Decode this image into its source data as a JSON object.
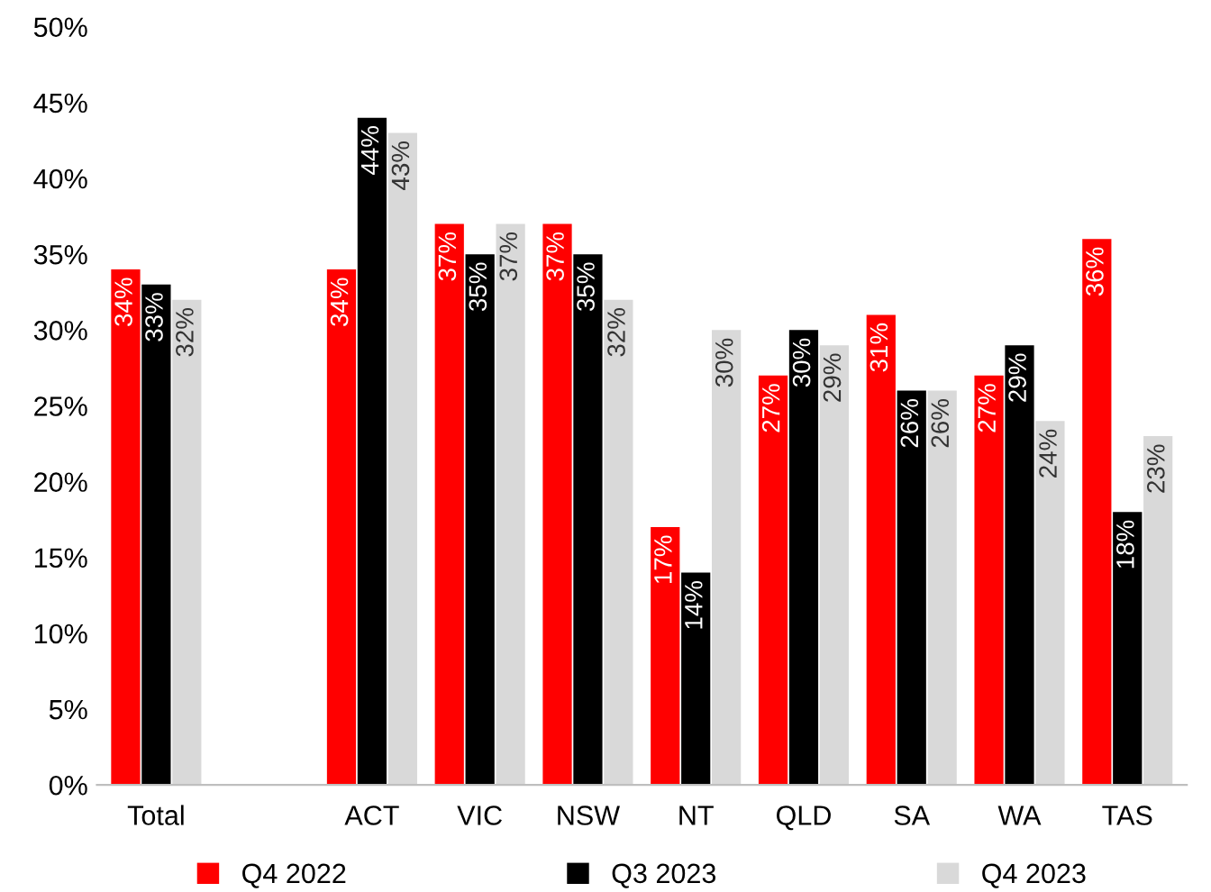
{
  "chart_data": {
    "type": "bar",
    "categories": [
      "Total",
      null,
      "ACT",
      "VIC",
      "NSW",
      "NT",
      "QLD",
      "SA",
      "WA",
      "TAS"
    ],
    "series": [
      {
        "name": "Q4 2022",
        "color": "#ff0000",
        "values": [
          34,
          null,
          34,
          37,
          37,
          17,
          27,
          31,
          27,
          36
        ],
        "value_labels": [
          "34%",
          null,
          "34%",
          "37%",
          "37%",
          "17%",
          "27%",
          "31%",
          "27%",
          "36%"
        ]
      },
      {
        "name": "Q3 2023",
        "color": "#000000",
        "values": [
          33,
          null,
          44,
          35,
          35,
          14,
          30,
          26,
          29,
          18
        ],
        "value_labels": [
          "33%",
          null,
          "44%",
          "35%",
          "35%",
          "14%",
          "30%",
          "26%",
          "29%",
          "18%"
        ]
      },
      {
        "name": "Q4 2023",
        "color": "#d9d9d9",
        "values": [
          32,
          null,
          43,
          37,
          32,
          30,
          29,
          26,
          24,
          23
        ],
        "value_labels": [
          "32%",
          null,
          "43%",
          "37%",
          "32%",
          "30%",
          "29%",
          "26%",
          "24%",
          "23%"
        ]
      }
    ],
    "ylim": [
      0,
      50
    ],
    "yticks": [
      {
        "value": 0,
        "label": "0%"
      },
      {
        "value": 5,
        "label": "5%"
      },
      {
        "value": 10,
        "label": "10%"
      },
      {
        "value": 15,
        "label": "15%"
      },
      {
        "value": 20,
        "label": "20%"
      },
      {
        "value": 25,
        "label": "25%"
      },
      {
        "value": 30,
        "label": "30%"
      },
      {
        "value": 35,
        "label": "35%"
      },
      {
        "value": 40,
        "label": "40%"
      },
      {
        "value": 45,
        "label": "45%"
      },
      {
        "value": 50,
        "label": "50%"
      }
    ],
    "grid": false,
    "legend": "bottom"
  }
}
